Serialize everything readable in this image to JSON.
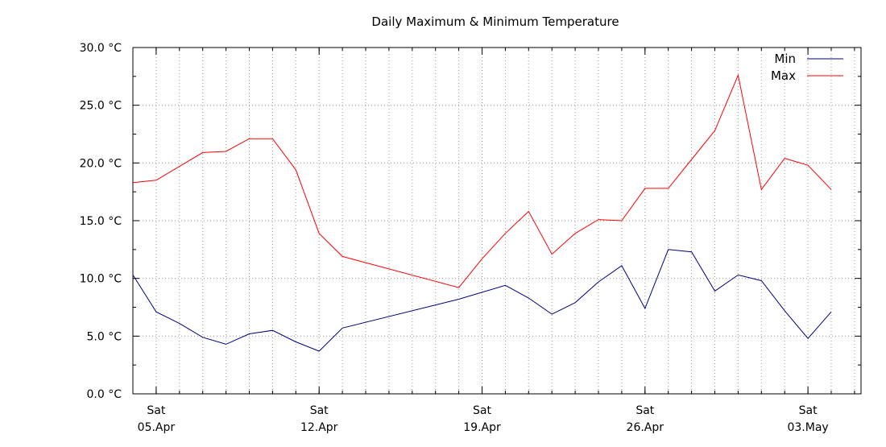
{
  "chart_data": {
    "type": "line",
    "title": "Daily Maximum & Minimum Temperature",
    "xlabel": "",
    "ylabel": "",
    "ylim": [
      0,
      30
    ],
    "xlim": [
      "2025-04-04",
      "2025-05-05"
    ],
    "grid": true,
    "legend_position": "top-right",
    "y_ticks": [
      "0.0 °C",
      "5.0 °C",
      "10.0 °C",
      "15.0 °C",
      "20.0 °C",
      "25.0 °C",
      "30.0 °C"
    ],
    "x_ticks": [
      {
        "date": "2025-04-05",
        "day": "Sat",
        "label": "05.Apr"
      },
      {
        "date": "2025-04-12",
        "day": "Sat",
        "label": "12.Apr"
      },
      {
        "date": "2025-04-19",
        "day": "Sat",
        "label": "19.Apr"
      },
      {
        "date": "2025-04-26",
        "day": "Sat",
        "label": "26.Apr"
      },
      {
        "date": "2025-05-03",
        "day": "Sat",
        "label": "03.May"
      }
    ],
    "series": [
      {
        "name": "Min",
        "color": "#000080",
        "points": [
          {
            "x": "2025-04-04",
            "y": 10.3
          },
          {
            "x": "2025-04-05",
            "y": 7.1
          },
          {
            "x": "2025-04-06",
            "y": 6.1
          },
          {
            "x": "2025-04-07",
            "y": 4.9
          },
          {
            "x": "2025-04-08",
            "y": 4.3
          },
          {
            "x": "2025-04-09",
            "y": 5.2
          },
          {
            "x": "2025-04-10",
            "y": 5.5
          },
          {
            "x": "2025-04-11",
            "y": 4.5
          },
          {
            "x": "2025-04-12",
            "y": 3.7
          },
          {
            "x": "2025-04-13",
            "y": 5.7
          },
          {
            "x": "2025-04-18",
            "y": 8.2
          },
          {
            "x": "2025-04-20",
            "y": 9.4
          },
          {
            "x": "2025-04-21",
            "y": 8.3
          },
          {
            "x": "2025-04-22",
            "y": 6.9
          },
          {
            "x": "2025-04-23",
            "y": 7.9
          },
          {
            "x": "2025-04-24",
            "y": 9.7
          },
          {
            "x": "2025-04-25",
            "y": 11.1
          },
          {
            "x": "2025-04-26",
            "y": 7.4
          },
          {
            "x": "2025-04-27",
            "y": 12.5
          },
          {
            "x": "2025-04-28",
            "y": 12.3
          },
          {
            "x": "2025-04-29",
            "y": 8.9
          },
          {
            "x": "2025-04-30",
            "y": 10.3
          },
          {
            "x": "2025-05-01",
            "y": 9.8
          },
          {
            "x": "2025-05-02",
            "y": 7.2
          },
          {
            "x": "2025-05-03",
            "y": 4.8
          },
          {
            "x": "2025-05-04",
            "y": 7.1
          }
        ]
      },
      {
        "name": "Max",
        "color": "#ff0000",
        "points": [
          {
            "x": "2025-04-04",
            "y": 18.3
          },
          {
            "x": "2025-04-05",
            "y": 18.5
          },
          {
            "x": "2025-04-06",
            "y": 19.7
          },
          {
            "x": "2025-04-07",
            "y": 20.9
          },
          {
            "x": "2025-04-08",
            "y": 21.0
          },
          {
            "x": "2025-04-09",
            "y": 22.1
          },
          {
            "x": "2025-04-10",
            "y": 22.1
          },
          {
            "x": "2025-04-11",
            "y": 19.4
          },
          {
            "x": "2025-04-12",
            "y": 13.9
          },
          {
            "x": "2025-04-13",
            "y": 11.9
          },
          {
            "x": "2025-04-18",
            "y": 9.2
          },
          {
            "x": "2025-04-19",
            "y": 11.7
          },
          {
            "x": "2025-04-20",
            "y": 13.9
          },
          {
            "x": "2025-04-21",
            "y": 15.8
          },
          {
            "x": "2025-04-22",
            "y": 12.1
          },
          {
            "x": "2025-04-23",
            "y": 13.9
          },
          {
            "x": "2025-04-24",
            "y": 15.1
          },
          {
            "x": "2025-04-25",
            "y": 15.0
          },
          {
            "x": "2025-04-26",
            "y": 17.8
          },
          {
            "x": "2025-04-27",
            "y": 17.8
          },
          {
            "x": "2025-04-28",
            "y": 20.3
          },
          {
            "x": "2025-04-29",
            "y": 22.8
          },
          {
            "x": "2025-04-30",
            "y": 27.6
          },
          {
            "x": "2025-05-01",
            "y": 17.7
          },
          {
            "x": "2025-05-02",
            "y": 20.4
          },
          {
            "x": "2025-05-03",
            "y": 19.8
          },
          {
            "x": "2025-05-04",
            "y": 17.7
          }
        ]
      }
    ]
  }
}
